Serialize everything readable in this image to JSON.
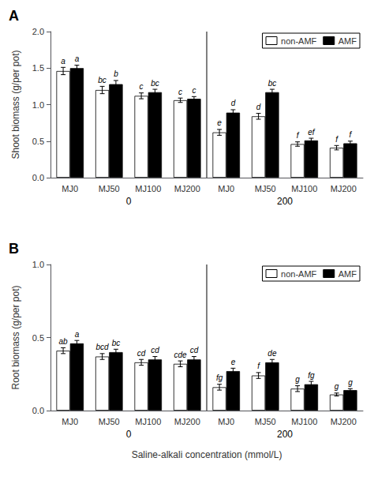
{
  "chart_data": [
    {
      "type": "bar",
      "title": "A",
      "ylabel": "Shoot biomass (g/per pot)",
      "categories": [
        "MJ0",
        "MJ50",
        "MJ100",
        "MJ200",
        "MJ0",
        "MJ50",
        "MJ100",
        "MJ200"
      ],
      "category_groups": [
        {
          "label": "0",
          "categories": [
            "MJ0",
            "MJ50",
            "MJ100",
            "MJ200"
          ]
        },
        {
          "label": "200",
          "categories": [
            "MJ0",
            "MJ50",
            "MJ100",
            "MJ200"
          ]
        }
      ],
      "series": [
        {
          "name": "non-AMF",
          "color": "white",
          "values": [
            1.46,
            1.2,
            1.12,
            1.06,
            0.62,
            0.84,
            0.46,
            0.41
          ],
          "errors": [
            0.05,
            0.05,
            0.04,
            0.03,
            0.04,
            0.04,
            0.03,
            0.03
          ],
          "annotations": [
            "a",
            "bc",
            "c",
            "c",
            "e",
            "d",
            "f",
            "f"
          ]
        },
        {
          "name": "AMF",
          "color": "black",
          "values": [
            1.5,
            1.28,
            1.17,
            1.08,
            0.89,
            1.17,
            0.51,
            0.47
          ],
          "errors": [
            0.04,
            0.05,
            0.04,
            0.03,
            0.04,
            0.04,
            0.03,
            0.03
          ],
          "annotations": [
            "a",
            "b",
            "bc",
            "c",
            "d",
            "bc",
            "ef",
            "f"
          ]
        }
      ],
      "ylim": [
        0,
        2.0
      ],
      "yticks": [
        {
          "value": 0,
          "label": "0.0"
        },
        0.5,
        {
          "value": 1.0,
          "label": "1.0"
        },
        1.5,
        {
          "value": 2.0,
          "label": "2.0"
        }
      ],
      "grid": false,
      "legend": "upper right"
    },
    {
      "type": "bar",
      "title": "B",
      "ylabel": "Root biomass (g/per pot)",
      "xlabel": "Saline-alkali concentration (mmol/L)",
      "categories": [
        "MJ0",
        "MJ50",
        "MJ100",
        "MJ200",
        "MJ0",
        "MJ50",
        "MJ100",
        "MJ200"
      ],
      "category_groups": [
        {
          "label": "0",
          "categories": [
            "MJ0",
            "MJ50",
            "MJ100",
            "MJ200"
          ]
        },
        {
          "label": "200",
          "categories": [
            "MJ0",
            "MJ50",
            "MJ100",
            "MJ200"
          ]
        }
      ],
      "series": [
        {
          "name": "non-AMF",
          "color": "white",
          "values": [
            0.41,
            0.37,
            0.33,
            0.32,
            0.16,
            0.24,
            0.15,
            0.11
          ],
          "errors": [
            0.02,
            0.02,
            0.02,
            0.02,
            0.02,
            0.02,
            0.02,
            0.01
          ],
          "annotations": [
            "ab",
            "bcd",
            "cd",
            "cde",
            "fg",
            "f",
            "g",
            "g"
          ]
        },
        {
          "name": "AMF",
          "color": "black",
          "values": [
            0.46,
            0.4,
            0.35,
            0.35,
            0.27,
            0.33,
            0.18,
            0.14
          ],
          "errors": [
            0.02,
            0.02,
            0.02,
            0.02,
            0.02,
            0.02,
            0.02,
            0.01
          ],
          "annotations": [
            "a",
            "bc",
            "cd",
            "cd",
            "e",
            "de",
            "fg",
            "g"
          ]
        }
      ],
      "ylim": [
        0,
        1.0
      ],
      "yticks": [
        {
          "value": 0,
          "label": "0.0"
        },
        0.5,
        {
          "value": 1.0,
          "label": "1.0"
        }
      ],
      "grid": false,
      "legend": "upper right"
    }
  ]
}
